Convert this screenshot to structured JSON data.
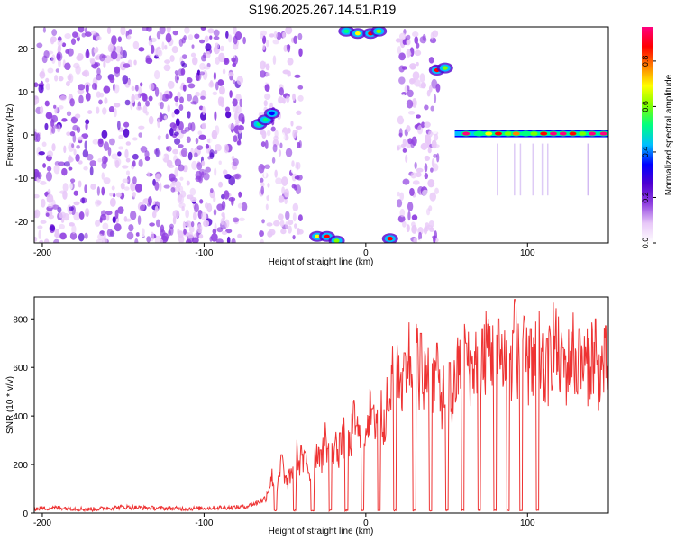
{
  "title": "S196.2025.267.14.51.R19",
  "chart_data": [
    {
      "type": "heatmap",
      "title": "S196.2025.267.14.51.R19",
      "xlabel": "Height of straight line (km)",
      "ylabel": "Frequency (Hz)",
      "xlim": [
        -205,
        150
      ],
      "ylim": [
        -25,
        25
      ],
      "xticks": [
        -200,
        -100,
        0,
        100
      ],
      "yticks": [
        20,
        10,
        0,
        -10,
        -20
      ],
      "colorbar": {
        "label": "Normalized spectral amplitude",
        "range": [
          0,
          0.95
        ],
        "ticks": [
          0.0,
          0.2,
          0.4,
          0.6,
          0.8
        ],
        "colors": [
          "#ffffff",
          "#e8c8f8",
          "#9040e0",
          "#5000d0",
          "#0000ff",
          "#00c0ff",
          "#00ff80",
          "#80ff00",
          "#ffff00",
          "#ff8000",
          "#ff0000",
          "#ff0080"
        ]
      },
      "regions": [
        {
          "name": "diffuse-noise",
          "x": [
            -205,
            -75
          ],
          "freq": [
            -25,
            25
          ],
          "level": 0.12
        },
        {
          "name": "diffuse-noise-left-gap",
          "x": [
            -65,
            -40
          ],
          "freq": [
            -25,
            25
          ],
          "level": 0.1
        },
        {
          "name": "diffuse-noise-right-gap",
          "x": [
            20,
            45
          ],
          "freq": [
            -25,
            25
          ],
          "level": 0.1
        }
      ],
      "blobs": [
        {
          "x": -66,
          "freq": 2.5,
          "amp": 0.5
        },
        {
          "x": -62,
          "freq": 3.5,
          "amp": 0.55
        },
        {
          "x": -58,
          "freq": 5.0,
          "amp": 0.35
        },
        {
          "x": -30,
          "freq": -23.5,
          "amp": 0.7
        },
        {
          "x": -24,
          "freq": -23.5,
          "amp": 0.9
        },
        {
          "x": -18,
          "freq": -24.5,
          "amp": 0.6
        },
        {
          "x": 15,
          "freq": -24.0,
          "amp": 0.85
        },
        {
          "x": -12,
          "freq": 24.0,
          "amp": 0.55
        },
        {
          "x": -5,
          "freq": 23.5,
          "amp": 0.65
        },
        {
          "x": 3,
          "freq": 23.5,
          "amp": 0.9
        },
        {
          "x": 8,
          "freq": 24.0,
          "amp": 0.6
        },
        {
          "x": 44,
          "freq": 15.0,
          "amp": 0.85
        },
        {
          "x": 49,
          "freq": 15.5,
          "amp": 0.6
        }
      ],
      "tone": {
        "freq": 0.3,
        "x": [
          55,
          150
        ],
        "peaks": [
          [
            62,
            0.95
          ],
          [
            70,
            0.55
          ],
          [
            76,
            0.7
          ],
          [
            82,
            0.85
          ],
          [
            88,
            0.6
          ],
          [
            93,
            0.75
          ],
          [
            99,
            0.55
          ],
          [
            104,
            0.6
          ],
          [
            110,
            0.9
          ],
          [
            116,
            0.95
          ],
          [
            122,
            0.95
          ],
          [
            128,
            0.9
          ],
          [
            134,
            0.6
          ],
          [
            140,
            0.95
          ],
          [
            147,
            0.95
          ]
        ]
      }
    },
    {
      "type": "line",
      "xlabel": "Height of straight line (km)",
      "ylabel": "SNR (10 * v/v)",
      "xlim": [
        -205,
        150
      ],
      "ylim": [
        0,
        890
      ],
      "xticks": [
        -200,
        -100,
        0,
        100
      ],
      "yticks": [
        0,
        200,
        400,
        600,
        800
      ],
      "color": "#ee3333",
      "series": [
        {
          "x": [
            -205,
            -190,
            -170,
            -150,
            -130,
            -110,
            -90,
            -75,
            -68,
            -62,
            -58,
            -55,
            -52,
            -49,
            -46,
            -43,
            -40,
            -37,
            -34,
            -31,
            -28,
            -25,
            -22,
            -19,
            -16,
            -13,
            -10,
            -7,
            -4,
            -1,
            2,
            5,
            8,
            11,
            14,
            17,
            20,
            23,
            26,
            29,
            32,
            35,
            38,
            41,
            44,
            47,
            50,
            53,
            56,
            59,
            62,
            65,
            68,
            71,
            74,
            77,
            80,
            83,
            86,
            89,
            92,
            95,
            98,
            101,
            104,
            107,
            110,
            113,
            116,
            119,
            122,
            125,
            128,
            131,
            134,
            137,
            140,
            143,
            146,
            150
          ],
          "y": [
            18,
            22,
            15,
            25,
            20,
            18,
            22,
            25,
            40,
            60,
            150,
            90,
            210,
            120,
            160,
            250,
            180,
            230,
            140,
            260,
            190,
            310,
            220,
            280,
            240,
            330,
            270,
            390,
            300,
            340,
            420,
            360,
            450,
            380,
            470,
            560,
            620,
            500,
            660,
            580,
            640,
            480,
            600,
            540,
            560,
            470,
            520,
            450,
            560,
            620,
            700,
            580,
            640,
            520,
            660,
            700,
            580,
            620,
            660,
            560,
            720,
            600,
            640,
            580,
            620,
            660,
            560,
            600,
            720,
            640,
            580,
            600,
            680,
            560,
            620,
            600,
            660,
            560,
            600,
            620
          ]
        }
      ],
      "dips_x": [
        -56,
        -44,
        -33,
        -22,
        -12,
        -2,
        8,
        18,
        30,
        40,
        50,
        60,
        70,
        80,
        88,
        96,
        106
      ],
      "peak_x": [
        -52,
        -40,
        -28,
        -16,
        -6,
        4,
        14,
        24,
        34,
        44,
        52,
        62,
        72,
        82,
        92,
        102,
        112,
        122,
        132,
        142
      ],
      "peak_y": [
        240,
        280,
        260,
        330,
        360,
        430,
        420,
        660,
        740,
        700,
        620,
        700,
        760,
        800,
        880,
        760,
        720,
        680,
        760,
        800
      ]
    }
  ]
}
